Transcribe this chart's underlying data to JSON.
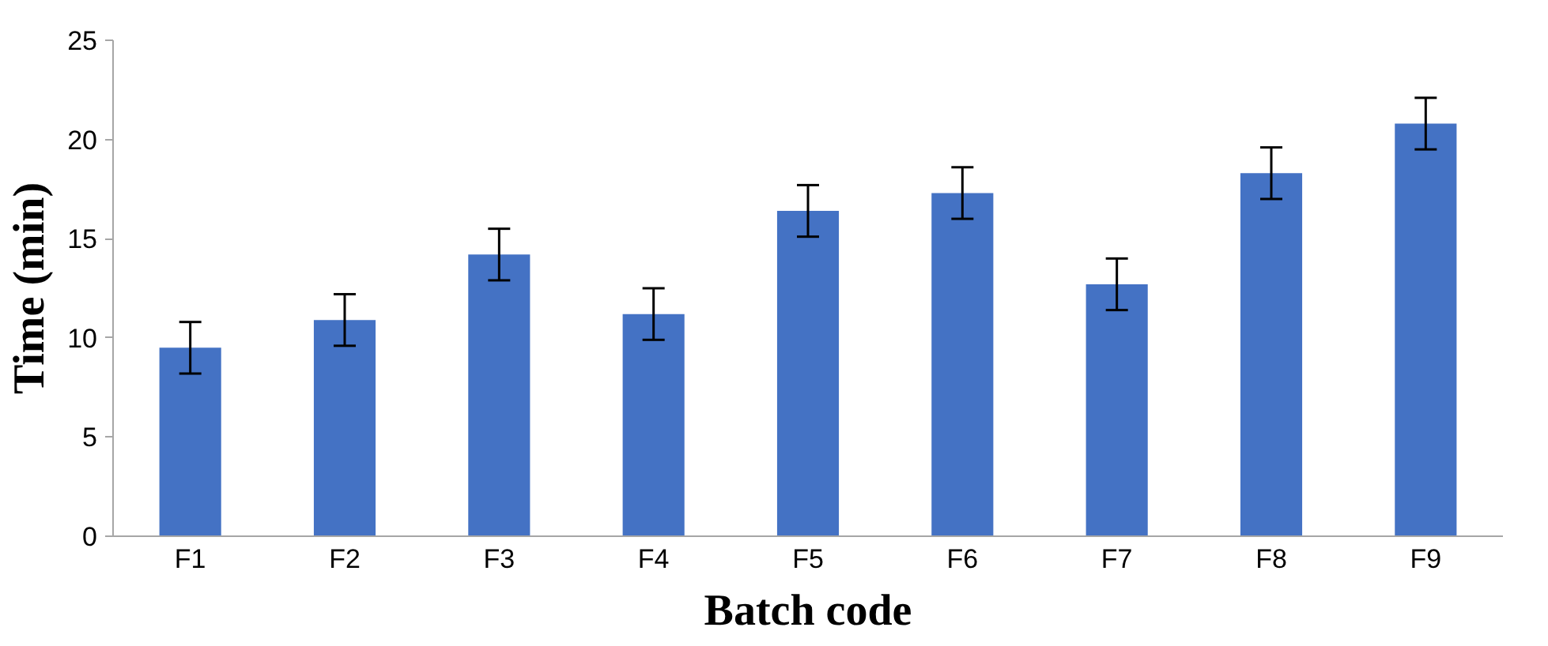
{
  "chart_data": {
    "type": "bar",
    "xlabel": "Batch code",
    "ylabel": "Time (min)",
    "categories": [
      "F1",
      "F2",
      "F3",
      "F4",
      "F5",
      "F6",
      "F7",
      "F8",
      "F9"
    ],
    "values": [
      9.5,
      10.9,
      14.2,
      11.2,
      16.4,
      17.3,
      12.7,
      18.3,
      20.8
    ],
    "errors": [
      1.3,
      1.3,
      1.3,
      1.3,
      1.3,
      1.3,
      1.3,
      1.3,
      1.3
    ],
    "color": "#4472c4",
    "ylim": [
      0,
      25
    ],
    "yticks": [
      0,
      5,
      10,
      15,
      20,
      25
    ],
    "grid": false
  }
}
